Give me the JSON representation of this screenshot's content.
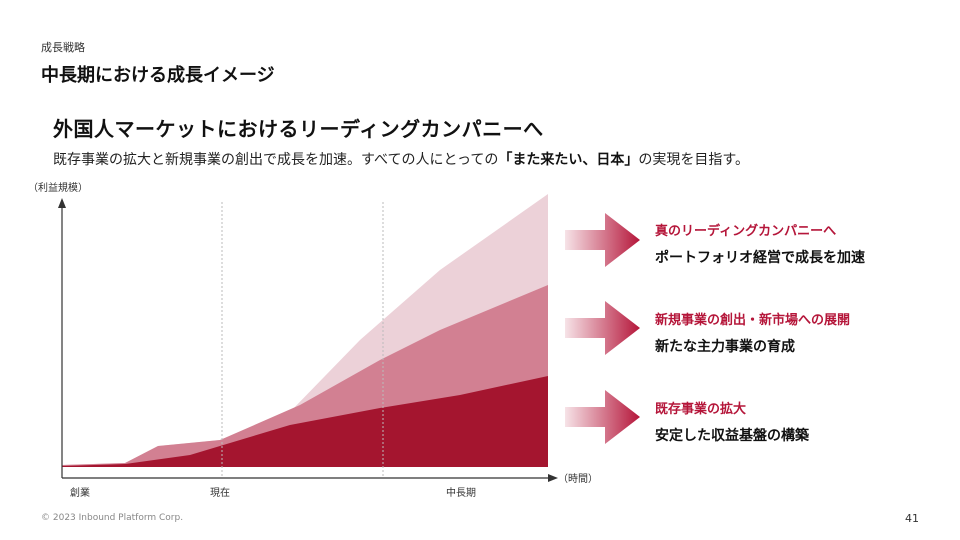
{
  "header": {
    "eyebrow": "成長戦略",
    "title": "中長期における成長イメージ"
  },
  "headline": "外国人マーケットにおけるリーディングカンパニーへ",
  "lead": {
    "before": "既存事業の拡大と新規事業の創出で成長を加速。すべての人にとっての",
    "emphasis": "「また来たい、日本」",
    "after": "の実現を目指す。"
  },
  "chart_data": {
    "type": "area",
    "stacked": true,
    "ylabel": "（利益規模）",
    "xlabel": "（時間）",
    "x_ticks": [
      "創業",
      "現在",
      "中長期"
    ],
    "colors": {
      "layer1": "#a4152f",
      "layer2": "#d28092",
      "layer3": "#ecd1d8",
      "arrow": "#b5163a"
    },
    "layers": [
      {
        "name": "既存事業の拡大"
      },
      {
        "name": "新規事業の創出・新市場への展開"
      },
      {
        "name": "真のリーディングカンパニーへ"
      }
    ]
  },
  "callouts": [
    {
      "title": "真のリーディングカンパニーへ",
      "subtitle": "ポートフォリオ経営で成長を加速"
    },
    {
      "title": "新規事業の創出・新市場への展開",
      "subtitle": "新たな主力事業の育成"
    },
    {
      "title": "既存事業の拡大",
      "subtitle": "安定した収益基盤の構築"
    }
  ],
  "footer": {
    "copyright": "© 2023 Inbound Platform Corp.",
    "page_number": "41"
  }
}
